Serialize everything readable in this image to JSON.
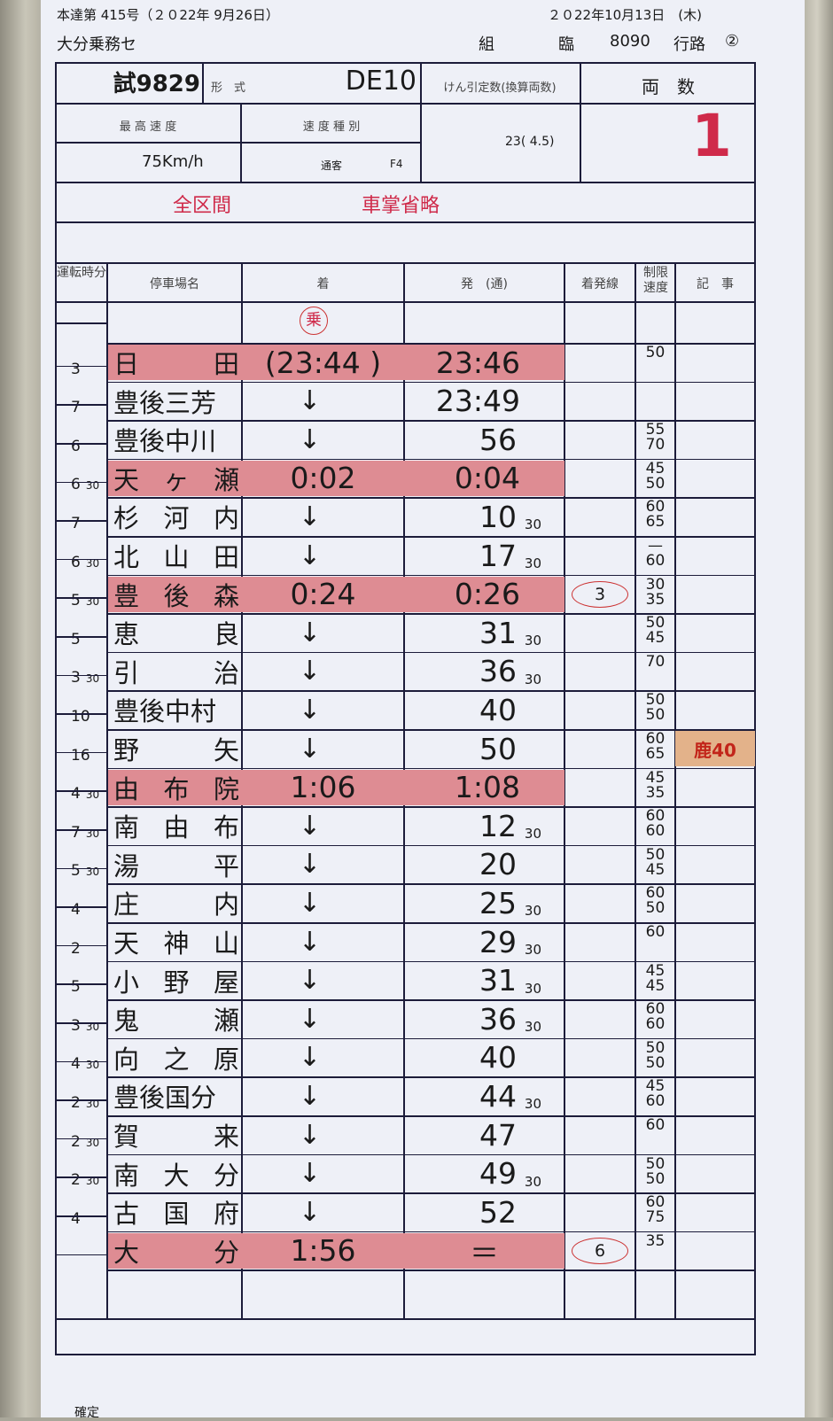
{
  "header": {
    "issue": "本達第 415号（２０22年 9月26日）",
    "date": "２０22年10月13日　(木)",
    "office": "大分乗務セ",
    "kumi_label": "組",
    "train_kind": "臨",
    "train_no": "8090",
    "route_label": "行路",
    "route_no": "②"
  },
  "info": {
    "train": "試9829",
    "type_label": "形　式",
    "type": "DE10",
    "tonnage_label": "けん引定数(換算両数)",
    "cars_label": "両　数",
    "max_speed_label": "最 高 速 度",
    "speed_class_label": "速 度 種 別",
    "max_speed": "75Km/h",
    "speed_class": "通客",
    "speed_code": "F4",
    "tonnage": "23( 4.5)",
    "cars": "1"
  },
  "remarks": {
    "section": "全区間",
    "note": "車掌省略"
  },
  "columns": {
    "run_time": "運転時分",
    "station": "停車場名",
    "arrive": "着",
    "depart": "発　(通)",
    "track": "着発線",
    "speed": "制限速度",
    "notes": "記　事"
  },
  "stamp": "乗",
  "run_times": [
    [
      "3",
      ""
    ],
    [
      "7",
      ""
    ],
    [
      "6",
      ""
    ],
    [
      "6",
      "30"
    ],
    [
      "7",
      ""
    ],
    [
      "6",
      "30"
    ],
    [
      "5",
      "30"
    ],
    [
      "5",
      ""
    ],
    [
      "3",
      "30"
    ],
    [
      "10",
      ""
    ],
    [
      "16",
      ""
    ],
    [
      "4",
      "30"
    ],
    [
      "7",
      "30"
    ],
    [
      "5",
      "30"
    ],
    [
      "4",
      ""
    ],
    [
      "2",
      ""
    ],
    [
      "5",
      ""
    ],
    [
      "3",
      "30"
    ],
    [
      "4",
      "30"
    ],
    [
      "2",
      "30"
    ],
    [
      "2",
      "30"
    ],
    [
      "2",
      "30"
    ],
    [
      "4",
      ""
    ]
  ],
  "rows": [
    {
      "station": [
        "日",
        "田"
      ],
      "arrive": "(23:44 )",
      "depart": "23:46",
      "sub": "",
      "track": "",
      "speed": [
        "50"
      ],
      "note": "",
      "stop": true
    },
    {
      "station": [
        "豊後三芳"
      ],
      "arrive": "↓",
      "depart": "23:49",
      "sub": "",
      "track": "",
      "speed": [],
      "note": "",
      "stop": false
    },
    {
      "station": [
        "豊後中川"
      ],
      "arrive": "↓",
      "depart": "56",
      "sub": "",
      "track": "",
      "speed": [
        "55",
        "70"
      ],
      "note": "",
      "stop": false
    },
    {
      "station": [
        "天",
        "ヶ",
        "瀬"
      ],
      "arrive": "0:02",
      "depart": "0:04",
      "sub": "",
      "track": "",
      "speed": [
        "45",
        "50"
      ],
      "note": "",
      "stop": true
    },
    {
      "station": [
        "杉",
        "河",
        "内"
      ],
      "arrive": "↓",
      "depart": "10",
      "sub": "30",
      "track": "",
      "speed": [
        "60",
        "65"
      ],
      "note": "",
      "stop": false
    },
    {
      "station": [
        "北",
        "山",
        "田"
      ],
      "arrive": "↓",
      "depart": "17",
      "sub": "30",
      "track": "",
      "speed": [
        "—",
        "60"
      ],
      "note": "",
      "stop": false
    },
    {
      "station": [
        "豊",
        "後",
        "森"
      ],
      "arrive": "0:24",
      "depart": "0:26",
      "sub": "",
      "track": "3",
      "speed": [
        "30",
        "35"
      ],
      "note": "",
      "stop": true
    },
    {
      "station": [
        "恵",
        "良"
      ],
      "arrive": "↓",
      "depart": "31",
      "sub": "30",
      "track": "",
      "speed": [
        "50",
        "45"
      ],
      "note": "",
      "stop": false
    },
    {
      "station": [
        "引",
        "治"
      ],
      "arrive": "↓",
      "depart": "36",
      "sub": "30",
      "track": "",
      "speed": [
        "70"
      ],
      "note": "",
      "stop": false
    },
    {
      "station": [
        "豊後中村"
      ],
      "arrive": "↓",
      "depart": "40",
      "sub": "",
      "track": "",
      "speed": [
        "50",
        "50"
      ],
      "note": "",
      "stop": false
    },
    {
      "station": [
        "野",
        "矢"
      ],
      "arrive": "↓",
      "depart": "50",
      "sub": "",
      "track": "",
      "speed": [
        "60",
        "65"
      ],
      "note": "鹿40",
      "stop": false
    },
    {
      "station": [
        "由",
        "布",
        "院"
      ],
      "arrive": "1:06",
      "depart": "1:08",
      "sub": "",
      "track": "",
      "speed": [
        "45",
        "35"
      ],
      "note": "",
      "stop": true
    },
    {
      "station": [
        "南",
        "由",
        "布"
      ],
      "arrive": "↓",
      "depart": "12",
      "sub": "30",
      "track": "",
      "speed": [
        "60",
        "60"
      ],
      "note": "",
      "stop": false
    },
    {
      "station": [
        "湯",
        "平"
      ],
      "arrive": "↓",
      "depart": "20",
      "sub": "",
      "track": "",
      "speed": [
        "50",
        "45"
      ],
      "note": "",
      "stop": false
    },
    {
      "station": [
        "庄",
        "内"
      ],
      "arrive": "↓",
      "depart": "25",
      "sub": "30",
      "track": "",
      "speed": [
        "60",
        "50"
      ],
      "note": "",
      "stop": false
    },
    {
      "station": [
        "天",
        "神",
        "山"
      ],
      "arrive": "↓",
      "depart": "29",
      "sub": "30",
      "track": "",
      "speed": [
        "60"
      ],
      "note": "",
      "stop": false
    },
    {
      "station": [
        "小",
        "野",
        "屋"
      ],
      "arrive": "↓",
      "depart": "31",
      "sub": "30",
      "track": "",
      "speed": [
        "45",
        "45"
      ],
      "note": "",
      "stop": false
    },
    {
      "station": [
        "鬼",
        "瀬"
      ],
      "arrive": "↓",
      "depart": "36",
      "sub": "30",
      "track": "",
      "speed": [
        "60",
        "60"
      ],
      "note": "",
      "stop": false
    },
    {
      "station": [
        "向",
        "之",
        "原"
      ],
      "arrive": "↓",
      "depart": "40",
      "sub": "",
      "track": "",
      "speed": [
        "50",
        "50"
      ],
      "note": "",
      "stop": false
    },
    {
      "station": [
        "豊後国分"
      ],
      "arrive": "↓",
      "depart": "44",
      "sub": "30",
      "track": "",
      "speed": [
        "45",
        "60"
      ],
      "note": "",
      "stop": false
    },
    {
      "station": [
        "賀",
        "来"
      ],
      "arrive": "↓",
      "depart": "47",
      "sub": "",
      "track": "",
      "speed": [
        "60"
      ],
      "note": "",
      "stop": false
    },
    {
      "station": [
        "南",
        "大",
        "分"
      ],
      "arrive": "↓",
      "depart": "49",
      "sub": "30",
      "track": "",
      "speed": [
        "50",
        "50"
      ],
      "note": "",
      "stop": false
    },
    {
      "station": [
        "古",
        "国",
        "府"
      ],
      "arrive": "↓",
      "depart": "52",
      "sub": "",
      "track": "",
      "speed": [
        "60",
        "75"
      ],
      "note": "",
      "stop": false
    },
    {
      "station": [
        "大",
        "分"
      ],
      "arrive": "1:56",
      "depart": "＝",
      "sub": "",
      "track": "6",
      "speed": [
        "35"
      ],
      "note": "",
      "stop": true
    }
  ],
  "footer": "確定"
}
